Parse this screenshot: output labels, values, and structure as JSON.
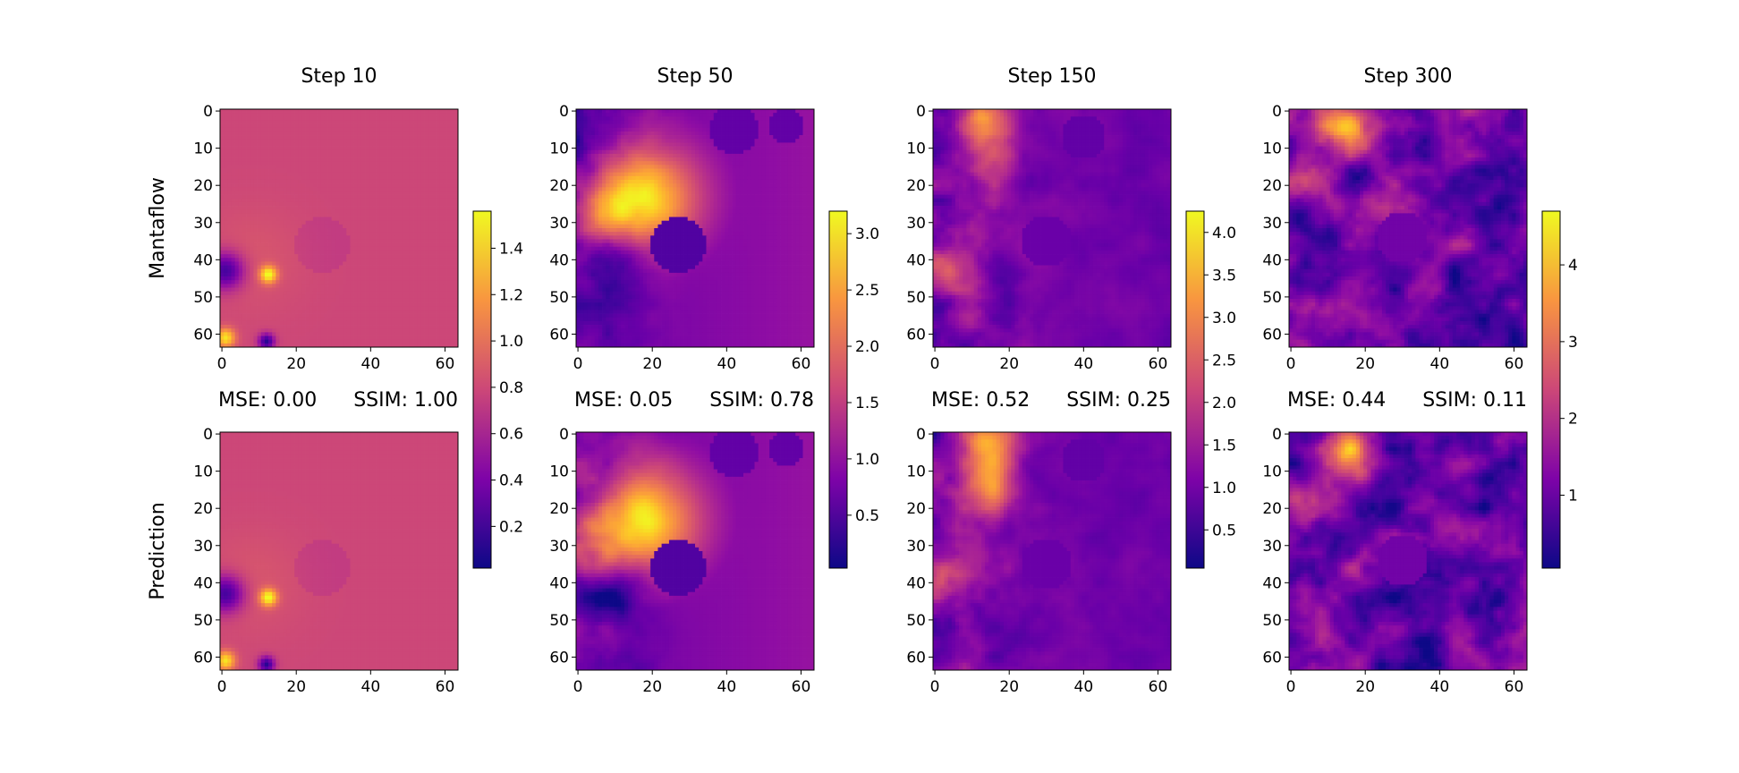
{
  "figure": {
    "row_labels": [
      "Mantaflow",
      "Prediction"
    ],
    "columns": [
      {
        "title": "Step 10",
        "mse": "MSE: 0.00",
        "ssim": "SSIM: 1.00"
      },
      {
        "title": "Step 50",
        "mse": "MSE: 0.05",
        "ssim": "SSIM: 0.78"
      },
      {
        "title": "Step 150",
        "mse": "MSE: 0.52",
        "ssim": "SSIM: 0.25"
      },
      {
        "title": "Step 300",
        "mse": "MSE: 0.44",
        "ssim": "SSIM: 0.11"
      }
    ]
  },
  "chart_data": {
    "type": "heatmap",
    "colormap": "plasma",
    "grid_size": [
      64,
      64
    ],
    "x_ticks": [
      0,
      20,
      40,
      60
    ],
    "y_ticks": [
      0,
      10,
      20,
      30,
      40,
      50,
      60
    ],
    "xlim": [
      0,
      63
    ],
    "ylim": [
      63,
      0
    ],
    "panels": [
      {
        "step": 10,
        "mse": 0.0,
        "ssim": 1.0,
        "colorbar_range": [
          0.02,
          1.56
        ],
        "colorbar_ticks": [
          0.2,
          0.4,
          0.6,
          0.8,
          1.0,
          1.2,
          1.4
        ]
      },
      {
        "step": 50,
        "mse": 0.05,
        "ssim": 0.78,
        "colorbar_range": [
          0.03,
          3.2
        ],
        "colorbar_ticks": [
          0.5,
          1.0,
          1.5,
          2.0,
          2.5,
          3.0
        ]
      },
      {
        "step": 150,
        "mse": 0.52,
        "ssim": 0.25,
        "colorbar_range": [
          0.05,
          4.25
        ],
        "colorbar_ticks": [
          0.5,
          1.0,
          1.5,
          2.0,
          2.5,
          3.0,
          3.5,
          4.0
        ]
      },
      {
        "step": 300,
        "mse": 0.44,
        "ssim": 0.11,
        "colorbar_range": [
          0.05,
          4.7
        ],
        "colorbar_ticks": [
          1,
          2,
          3,
          4
        ]
      }
    ]
  }
}
